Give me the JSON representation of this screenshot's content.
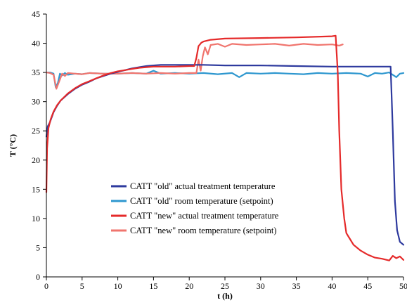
{
  "chart_data": {
    "type": "line",
    "xlabel": "t (h)",
    "ylabel": "T (°C)",
    "xlim": [
      0,
      50
    ],
    "ylim": [
      0,
      45
    ],
    "xticks": [
      0,
      5,
      10,
      15,
      20,
      25,
      30,
      35,
      40,
      45,
      50
    ],
    "yticks": [
      0,
      5,
      10,
      15,
      20,
      25,
      30,
      35,
      40,
      45
    ],
    "grid": false,
    "legend_position": "lower-left",
    "series": [
      {
        "name": "CATT \"old\" actual treatment temperature",
        "color": "#2e3a9e",
        "x": [
          0,
          0.2,
          0.5,
          1,
          1.5,
          2,
          3,
          4,
          5,
          6,
          7,
          8,
          9,
          10,
          11,
          12,
          13,
          14,
          15,
          16,
          18,
          20,
          22,
          25,
          30,
          35,
          40,
          45,
          47,
          48.2,
          48.5,
          48.8,
          49.1,
          49.5,
          50
        ],
        "values": [
          24,
          25.8,
          26.5,
          28.2,
          29.3,
          30.2,
          31.3,
          32.2,
          32.9,
          33.4,
          34,
          34.4,
          34.8,
          35.1,
          35.4,
          35.7,
          35.9,
          36.1,
          36.2,
          36.3,
          36.3,
          36.3,
          36.3,
          36.2,
          36.2,
          36.1,
          36,
          36,
          36,
          36,
          25,
          13,
          8,
          6,
          5.5
        ]
      },
      {
        "name": "CATT \"old\" room temperature (setpoint)",
        "color": "#2e97cf",
        "x": [
          0,
          0.5,
          1,
          1.3,
          1.6,
          1.9,
          2.2,
          2.6,
          3,
          4,
          5,
          6,
          8,
          10,
          12,
          14,
          15,
          16,
          18,
          20,
          22,
          24,
          26,
          27,
          28,
          30,
          32,
          34,
          36,
          38,
          40,
          42,
          44,
          45,
          46,
          47,
          48,
          49,
          49.5,
          50
        ],
        "values": [
          35,
          35,
          34.8,
          32.5,
          33.2,
          34.8,
          34.5,
          34.9,
          34.6,
          34.8,
          34.7,
          34.9,
          34.8,
          34.8,
          34.9,
          34.8,
          35.3,
          34.8,
          34.9,
          34.8,
          34.9,
          34.7,
          34.9,
          34.2,
          34.9,
          34.8,
          34.9,
          34.8,
          34.7,
          34.9,
          34.8,
          34.9,
          34.8,
          34.3,
          34.9,
          34.8,
          35,
          34.2,
          34.8,
          34.9
        ]
      },
      {
        "name": "CATT \"new\" actual treatment temperature",
        "color": "#e52a2a",
        "x": [
          0,
          0.1,
          0.3,
          0.6,
          1,
          1.5,
          2,
          3,
          4,
          5,
          6,
          7,
          8,
          9,
          10,
          11,
          12,
          13,
          14,
          15,
          16,
          18,
          20,
          20.7,
          21,
          21.3,
          21.7,
          22,
          23,
          25,
          30,
          35,
          40,
          40.5,
          40.8,
          41,
          41.3,
          41.7,
          42,
          42.5,
          43,
          44,
          45,
          46,
          47,
          48,
          48.5,
          49,
          49.5,
          50
        ],
        "values": [
          14.5,
          22,
          25.5,
          27,
          28.3,
          29.4,
          30.2,
          31.4,
          32.3,
          33,
          33.5,
          34,
          34.5,
          34.9,
          35.2,
          35.4,
          35.6,
          35.8,
          35.9,
          36,
          36,
          36,
          36.1,
          36.1,
          37.5,
          39.5,
          40.1,
          40.3,
          40.6,
          40.8,
          40.9,
          41,
          41.2,
          41.3,
          35,
          25,
          15,
          10,
          7.5,
          6.5,
          5.5,
          4.5,
          3.8,
          3.3,
          3.1,
          2.8,
          3.6,
          3.2,
          3.5,
          2.9
        ]
      },
      {
        "name": "CATT \"new\" room temperature (setpoint)",
        "color": "#f0756e",
        "x": [
          0,
          0.5,
          1,
          1.4,
          1.8,
          2.2,
          2.6,
          3,
          4,
          5,
          6,
          8,
          10,
          12,
          14,
          16,
          18,
          20,
          21,
          21.3,
          21.6,
          21.9,
          22.2,
          22.6,
          23,
          24,
          25,
          26,
          28,
          30,
          32,
          34,
          36,
          38,
          40,
          41,
          41.5
        ],
        "values": [
          35,
          34.9,
          34.6,
          32.2,
          33.5,
          34.8,
          34.4,
          34.9,
          34.8,
          34.7,
          34.9,
          34.8,
          34.8,
          34.9,
          34.8,
          34.9,
          34.8,
          34.9,
          34.9,
          37.2,
          35.3,
          37.8,
          39.3,
          38.1,
          39.7,
          39.9,
          39.4,
          39.9,
          39.7,
          39.8,
          39.9,
          39.6,
          39.9,
          39.7,
          39.8,
          39.6,
          39.8
        ]
      }
    ]
  }
}
